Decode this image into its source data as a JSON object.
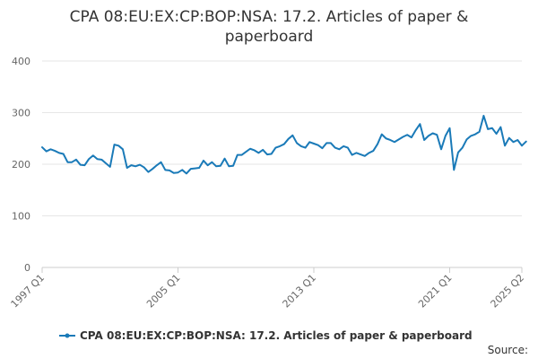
{
  "chart_data": {
    "type": "line",
    "title_lines": [
      "CPA 08:EU:EX:CP:BOP:NSA: 17.2. Articles of paper &",
      "paperboard"
    ],
    "xlabel": "",
    "ylabel": "",
    "ylim": [
      0,
      400
    ],
    "yticks": [
      0,
      100,
      200,
      300,
      400
    ],
    "x_start": "1997 Q1",
    "x_end": "2025 Q2",
    "xticks": [
      "1997 Q1",
      "2005 Q1",
      "2013 Q1",
      "2021 Q1",
      "2025 Q2"
    ],
    "grid": true,
    "legend_position": "bottom",
    "source_label": "Source:",
    "series": [
      {
        "name": "CPA 08:EU:EX:CP:BOP:NSA: 17.2. Articles of paper & paperboard",
        "color": "#1a7ab8",
        "values": [
          233,
          225,
          229,
          226,
          222,
          220,
          204,
          204,
          209,
          199,
          198,
          210,
          217,
          210,
          209,
          202,
          195,
          238,
          236,
          229,
          193,
          198,
          196,
          199,
          194,
          185,
          191,
          198,
          204,
          189,
          188,
          183,
          184,
          189,
          182,
          191,
          192,
          193,
          207,
          198,
          204,
          196,
          197,
          211,
          196,
          197,
          218,
          218,
          224,
          230,
          227,
          222,
          228,
          219,
          220,
          232,
          235,
          239,
          249,
          256,
          241,
          235,
          232,
          243,
          240,
          237,
          231,
          241,
          241,
          232,
          229,
          235,
          232,
          218,
          222,
          219,
          216,
          222,
          226,
          239,
          258,
          250,
          247,
          243,
          248,
          253,
          257,
          252,
          266,
          278,
          247,
          255,
          260,
          257,
          229,
          255,
          270,
          189,
          223,
          232,
          248,
          255,
          258,
          263,
          294,
          268,
          270,
          259,
          272,
          236,
          251,
          243,
          247,
          236,
          244
        ]
      }
    ]
  }
}
